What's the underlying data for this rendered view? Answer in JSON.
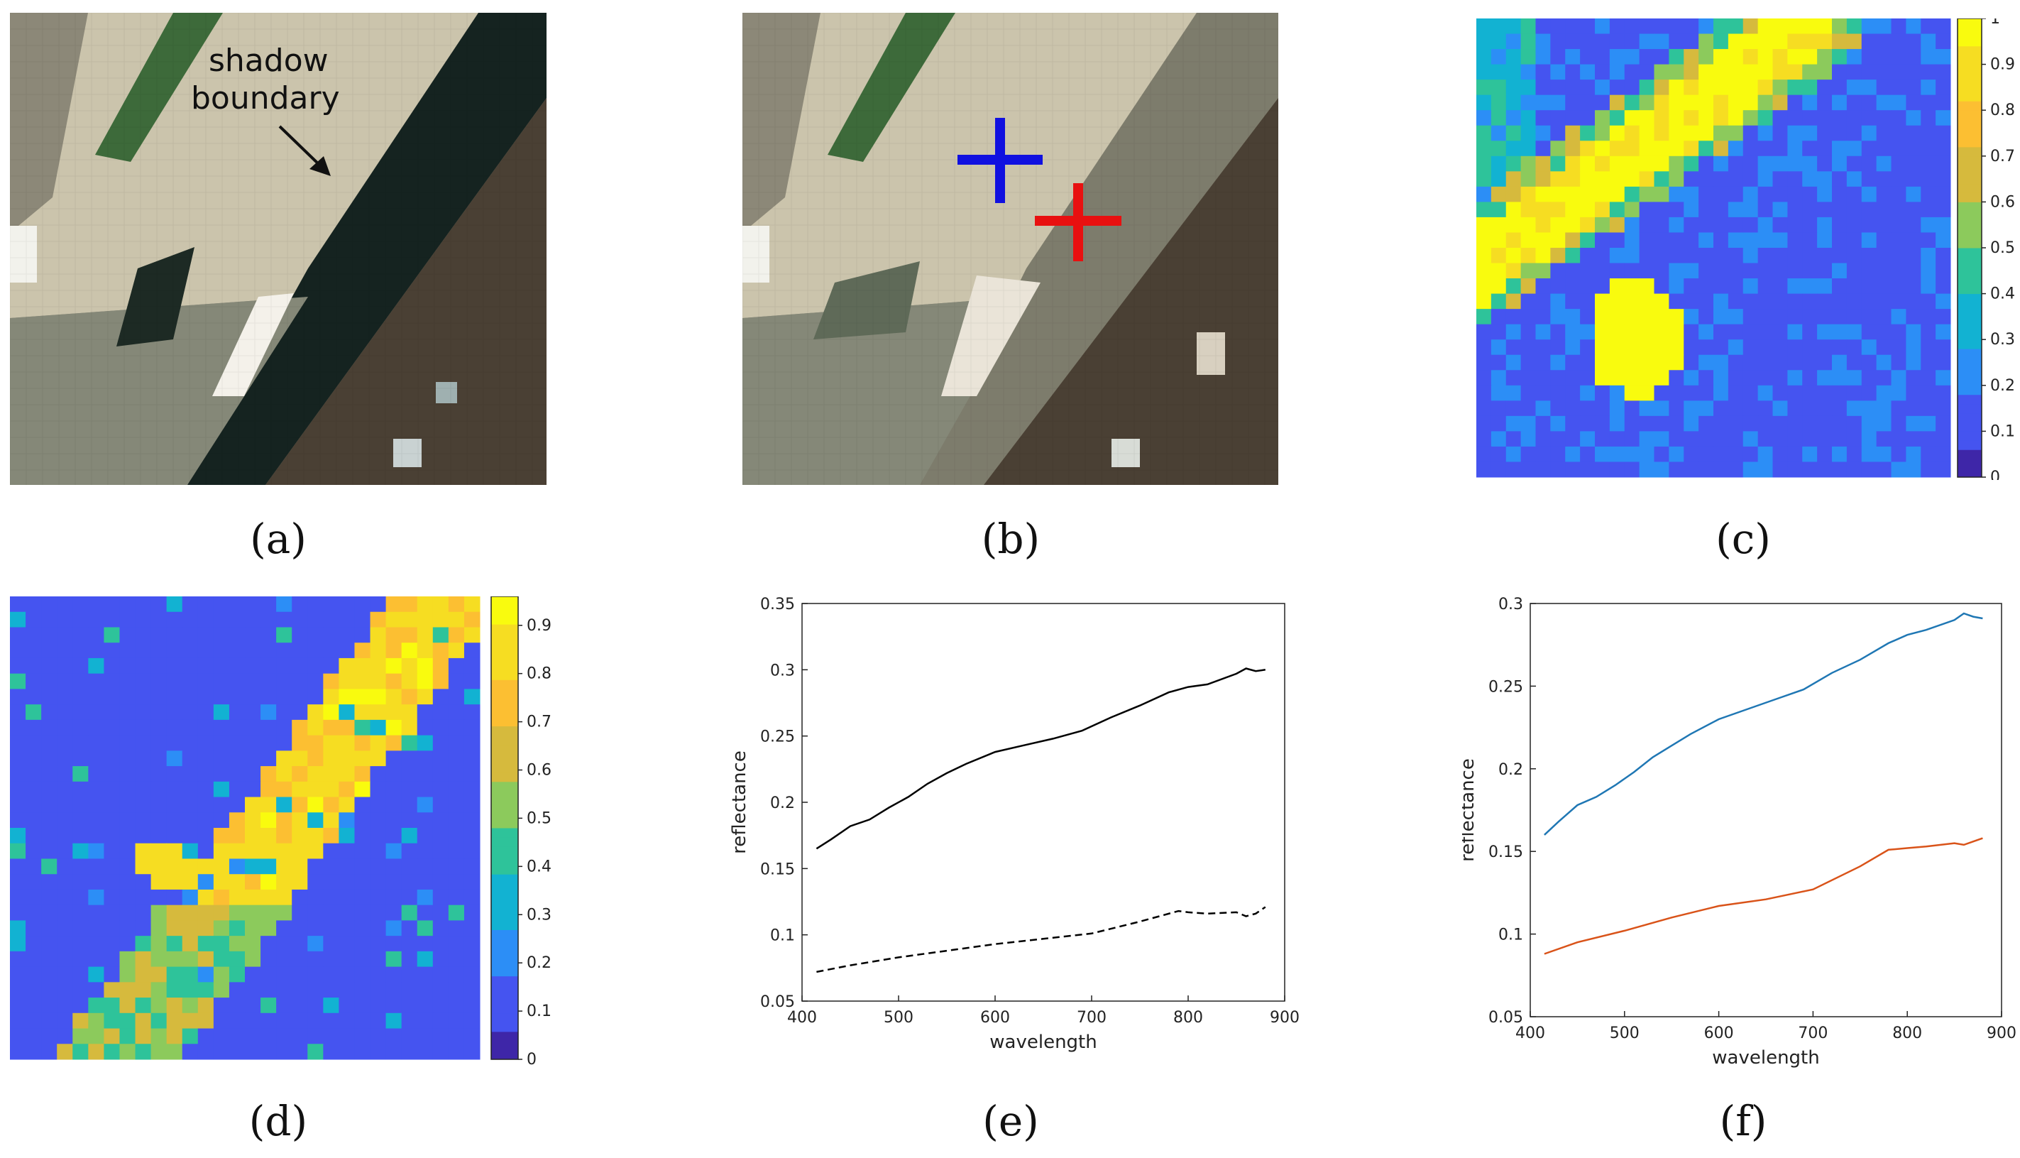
{
  "captions": [
    "(a)",
    "(b)",
    "(c)",
    "(d)",
    "(e)",
    "(f)"
  ],
  "panel_a": {
    "annotation_line1": "shadow",
    "annotation_line2": "boundary"
  },
  "panel_b": {
    "markers": [
      {
        "name": "sunlit-pixel",
        "color": "#1010e0"
      },
      {
        "name": "shadow-pixel",
        "color": "#e81010"
      }
    ]
  },
  "colormap": [
    "#3e26a8",
    "#4554f0",
    "#2c8ef6",
    "#12b2d2",
    "#2ec39a",
    "#8cca5c",
    "#d6ba3d",
    "#fcbf32",
    "#f6dd22",
    "#f9fb0e"
  ],
  "panel_c": {
    "colorbar_ticks": [
      "0",
      "0.1",
      "0.2",
      "0.3",
      "0.4",
      "0.5",
      "0.6",
      "0.7",
      "0.8",
      "0.9",
      "1"
    ]
  },
  "panel_d": {
    "colorbar_ticks": [
      "0",
      "0.1",
      "0.2",
      "0.3",
      "0.4",
      "0.5",
      "0.6",
      "0.7",
      "0.8",
      "0.9"
    ]
  },
  "chart_data": [
    {
      "panel": "e",
      "type": "line",
      "xlabel": "wavelength",
      "ylabel": "reflectance",
      "xlim": [
        400,
        900
      ],
      "ylim": [
        0.05,
        0.35
      ],
      "xticks": [
        "400",
        "500",
        "600",
        "700",
        "800",
        "900"
      ],
      "yticks": [
        "0.05",
        "0.1",
        "0.15",
        "0.2",
        "0.25",
        "0.3",
        "0.35"
      ],
      "series": [
        {
          "style": "solid",
          "color": "#000000",
          "x": [
            415,
            430,
            450,
            470,
            490,
            510,
            530,
            550,
            570,
            600,
            630,
            660,
            690,
            720,
            750,
            780,
            800,
            820,
            850,
            860,
            870,
            880
          ],
          "y": [
            0.165,
            0.172,
            0.182,
            0.187,
            0.196,
            0.204,
            0.214,
            0.222,
            0.229,
            0.238,
            0.243,
            0.248,
            0.254,
            0.264,
            0.273,
            0.283,
            0.287,
            0.289,
            0.297,
            0.301,
            0.299,
            0.3
          ]
        },
        {
          "style": "dashed",
          "color": "#000000",
          "x": [
            415,
            450,
            500,
            550,
            600,
            650,
            700,
            750,
            790,
            800,
            820,
            850,
            860,
            870,
            880
          ],
          "y": [
            0.072,
            0.077,
            0.083,
            0.088,
            0.093,
            0.097,
            0.101,
            0.11,
            0.118,
            0.117,
            0.116,
            0.117,
            0.114,
            0.116,
            0.121
          ]
        }
      ]
    },
    {
      "panel": "f",
      "type": "line",
      "xlabel": "wavelength",
      "ylabel": "reflectance",
      "xlim": [
        400,
        900
      ],
      "ylim": [
        0.05,
        0.3
      ],
      "xticks": [
        "400",
        "500",
        "600",
        "700",
        "800",
        "900"
      ],
      "yticks": [
        "0.05",
        "0.1",
        "0.15",
        "0.2",
        "0.25",
        "0.3"
      ],
      "series": [
        {
          "color": "#1f77b4",
          "x": [
            415,
            430,
            450,
            470,
            490,
            510,
            530,
            550,
            570,
            600,
            630,
            660,
            690,
            720,
            750,
            780,
            800,
            820,
            850,
            860,
            870,
            880
          ],
          "y": [
            0.16,
            0.168,
            0.178,
            0.183,
            0.19,
            0.198,
            0.207,
            0.214,
            0.221,
            0.23,
            0.236,
            0.242,
            0.248,
            0.258,
            0.266,
            0.276,
            0.281,
            0.284,
            0.29,
            0.294,
            0.292,
            0.291
          ]
        },
        {
          "color": "#d95319",
          "x": [
            415,
            450,
            500,
            550,
            600,
            650,
            700,
            750,
            780,
            800,
            820,
            850,
            860,
            870,
            880
          ],
          "y": [
            0.088,
            0.095,
            0.102,
            0.11,
            0.117,
            0.121,
            0.127,
            0.141,
            0.151,
            0.152,
            0.153,
            0.155,
            0.154,
            0.156,
            0.158
          ]
        }
      ]
    }
  ]
}
